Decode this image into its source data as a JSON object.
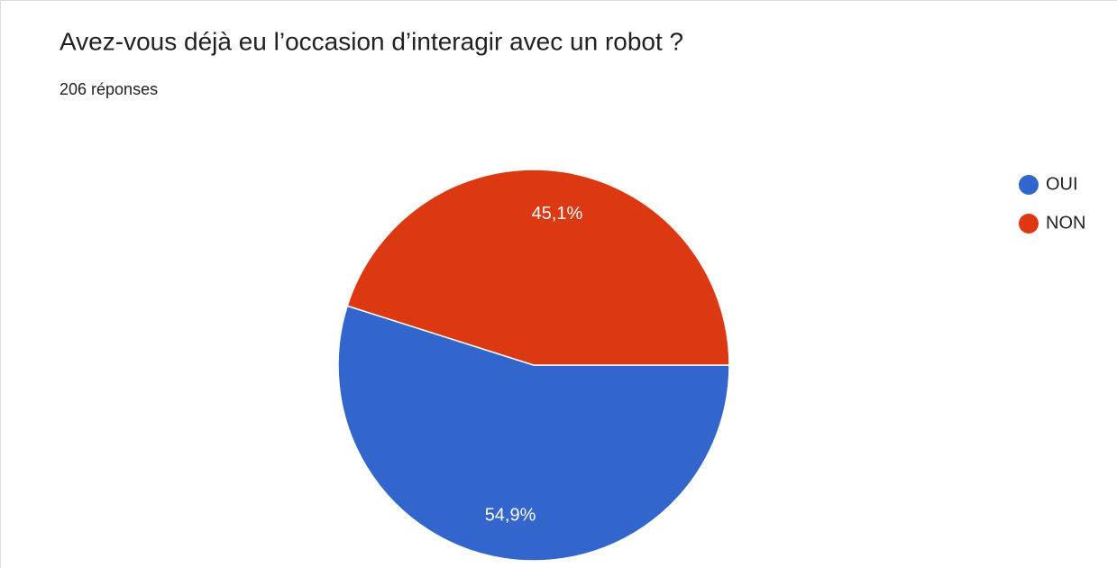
{
  "chart_data": {
    "type": "pie",
    "title": "Avez-vous déjà eu l’occasion d’interagir avec un robot ?",
    "subtitle": "206 réponses",
    "categories": [
      "OUI",
      "NON"
    ],
    "values": [
      54.9,
      45.1
    ],
    "value_labels": [
      "54,9%",
      "45,1%"
    ],
    "colors": [
      "#3366cc",
      "#dc3912"
    ],
    "legend": "right"
  }
}
